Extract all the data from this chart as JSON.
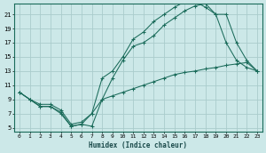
{
  "xlabel": "Humidex (Indice chaleur)",
  "bg_color": "#cce8e8",
  "grid_color": "#aacccc",
  "line_color": "#1a6b5a",
  "xlim": [
    -0.5,
    23.5
  ],
  "ylim": [
    4.5,
    22.5
  ],
  "xticks": [
    0,
    1,
    2,
    3,
    4,
    5,
    6,
    7,
    8,
    9,
    10,
    11,
    12,
    13,
    14,
    15,
    16,
    17,
    18,
    19,
    20,
    21,
    22,
    23
  ],
  "yticks": [
    5,
    7,
    9,
    11,
    13,
    15,
    17,
    19,
    21
  ],
  "line1_x": [
    0,
    1,
    2,
    3,
    4,
    5,
    6,
    7,
    8,
    9,
    10,
    11,
    12,
    13,
    14,
    15,
    16,
    17,
    18,
    19,
    20,
    21,
    22,
    23
  ],
  "line1_y": [
    10,
    9,
    8,
    8,
    7,
    5.2,
    5.5,
    5.2,
    9,
    12,
    14.5,
    16.5,
    17,
    18,
    19.5,
    20.5,
    21.5,
    22.2,
    22.5,
    21,
    17,
    14.5,
    13.5,
    13
  ],
  "line2_x": [
    0,
    1,
    2,
    3,
    4,
    5,
    6,
    7,
    8,
    9,
    10,
    11,
    12,
    13,
    14,
    15,
    16,
    17,
    18,
    19,
    20,
    21,
    22,
    23
  ],
  "line2_y": [
    10,
    9,
    8,
    8,
    7.2,
    5.2,
    5.5,
    7,
    12,
    13,
    15,
    17.5,
    18.5,
    20,
    21,
    22,
    22.8,
    22.8,
    22,
    21,
    21,
    17,
    14.5,
    13
  ],
  "line3_x": [
    0,
    1,
    2,
    3,
    4,
    5,
    6,
    7,
    8,
    9,
    10,
    11,
    12,
    13,
    14,
    15,
    16,
    17,
    18,
    19,
    20,
    21,
    22,
    23
  ],
  "line3_y": [
    10,
    9,
    8.3,
    8.3,
    7.5,
    5.5,
    5.8,
    7,
    9,
    9.5,
    10,
    10.5,
    11,
    11.5,
    12,
    12.5,
    12.8,
    13,
    13.3,
    13.5,
    13.8,
    14,
    14.2,
    13
  ]
}
